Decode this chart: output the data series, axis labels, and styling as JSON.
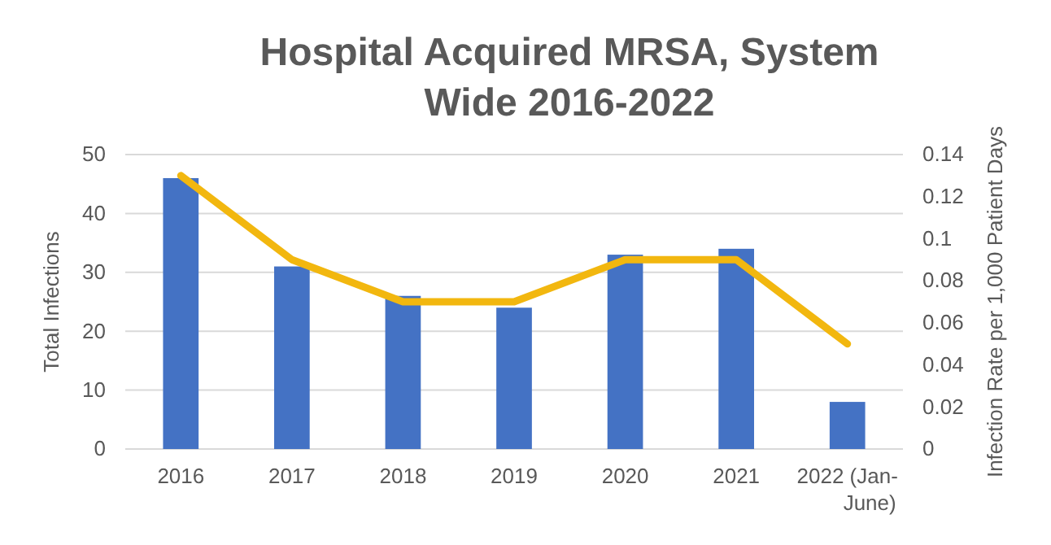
{
  "chart_data": {
    "type": "bar",
    "title": "Hospital Acquired MRSA, System Wide 2016-2022",
    "ylabel": "Total Infections",
    "y2label": "Infection Rate per 1,000 Patient Days",
    "categories": [
      "2016",
      "2017",
      "2018",
      "2019",
      "2020",
      "2021",
      "2022 (Jan-June)"
    ],
    "series": [
      {
        "color": "#4472c4",
        "values": [
          46,
          31,
          26,
          24,
          33,
          34,
          8
        ]
      },
      {
        "type": "line",
        "axis": "y2",
        "color": "#f2b70f",
        "values": [
          0.13,
          0.09,
          0.07,
          0.07,
          0.09,
          0.09,
          0.05
        ]
      }
    ],
    "ylim": [
      0,
      50
    ],
    "yticks": [
      0,
      10,
      20,
      30,
      40,
      50
    ],
    "y2lim": [
      0,
      0.14
    ],
    "y2ticks": [
      0,
      0.02,
      0.04,
      0.06,
      0.08,
      0.1,
      0.12,
      0.14
    ],
    "grid": "y"
  }
}
